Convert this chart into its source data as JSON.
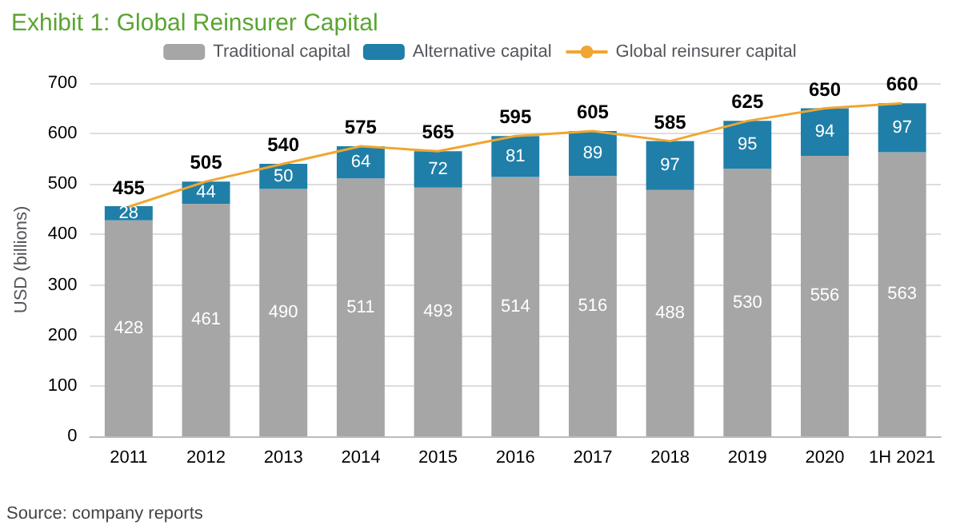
{
  "chart_data": {
    "type": "bar",
    "title": "Exhibit 1: Global Reinsurer Capital",
    "ylabel": "USD (billions)",
    "categories": [
      "2011",
      "2012",
      "2013",
      "2014",
      "2015",
      "2016",
      "2017",
      "2018",
      "2019",
      "2020",
      "1H 2021"
    ],
    "stacked": true,
    "data_labels": true,
    "legend": "top",
    "grid": "y",
    "marker": "none",
    "line_style": "solid",
    "ylim": [
      0,
      700
    ],
    "yticks": [
      0,
      100,
      200,
      300,
      400,
      500,
      600,
      700
    ],
    "series": [
      {
        "name": "Traditional capital",
        "color": "#a6a6a6",
        "values": [
          428,
          461,
          490,
          511,
          493,
          514,
          516,
          488,
          530,
          556,
          563
        ]
      },
      {
        "name": "Alternative capital",
        "color": "#1f7fa8",
        "values": [
          28,
          44,
          50,
          64,
          72,
          81,
          89,
          97,
          95,
          94,
          97
        ]
      },
      {
        "name": "Global reinsurer capital",
        "type": "line",
        "color": "#f0a630",
        "values": [
          455,
          505,
          540,
          575,
          565,
          595,
          605,
          585,
          625,
          650,
          660
        ]
      }
    ],
    "annotations": [
      "Source: company reports"
    ]
  }
}
